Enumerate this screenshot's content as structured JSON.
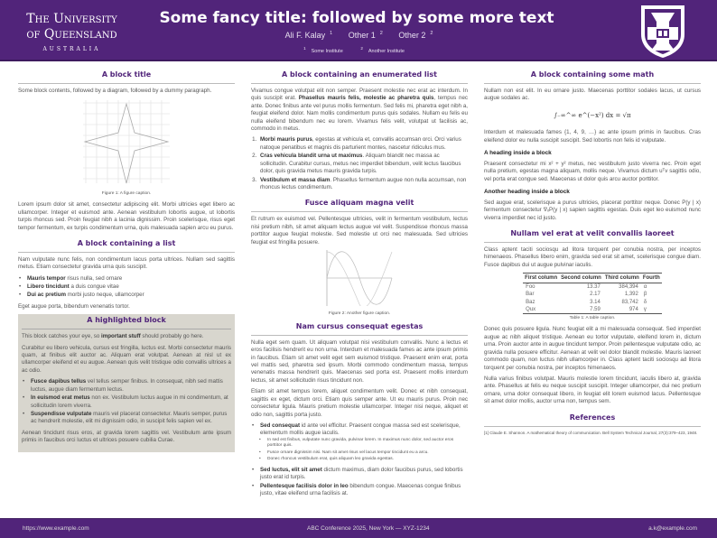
{
  "header": {
    "logo_line1": "The University",
    "logo_line2": "of Queensland",
    "logo_line3": "AUSTRALIA",
    "title": "Some fancy title: followed by some more text",
    "authors": [
      {
        "name": "Ali F. Kalay",
        "sup": "1"
      },
      {
        "name": "Other 1",
        "sup": "2"
      },
      {
        "name": "Other 2",
        "sup": "2"
      }
    ],
    "institutes": [
      {
        "sup": "1",
        "name": "Some Institute"
      },
      {
        "sup": "2",
        "name": "Another Institute"
      }
    ]
  },
  "colors": {
    "brand": "#51247a",
    "highlight_bg": "#d8d6ce"
  },
  "col1": {
    "b1": {
      "title": "A block title",
      "intro": "Some block contents, followed by a diagram, followed by a dummy paragraph.",
      "caption": "Figure 1: A figure caption.",
      "para": "Lorem ipsum dolor sit amet, consectetur adipiscing elit. Morbi ultricies eget libero ac ullamcorper. Integer et euismod ante. Aenean vestibulum lobortis augue, ut lobortis turpis rhoncus sed. Proin feugiat nibh a lacinia dignissim. Proin scelerisque, risus eget tempor fermentum, ex turpis condimentum urna, quis malesuada sapien arcu eu purus."
    },
    "b2": {
      "title": "A block containing a list",
      "intro": "Nam vulputate nunc felis, non condimentum lacus porta ultrices. Nullam sed sagittis metus. Etiam consectetur gravida urna quis suscipit.",
      "items": [
        {
          "b": "Mauris tempor",
          "t": " risus nulla, sed ornare"
        },
        {
          "b": "Libero tincidunt",
          "t": " a duis congue vitae"
        },
        {
          "b": "Dui ac pretium",
          "t": " morbi justo neque, ullamcorper"
        }
      ],
      "outro": "Eget augue porta, bibendum venenatis tortor."
    },
    "b3": {
      "title": "A highlighted block",
      "p1a": "This block catches your eye, so ",
      "p1b": "important stuff",
      "p1c": " should probably go here.",
      "p2": "Curabitur eu libero vehicula, cursus est fringilla, luctus est. Morbi consectetur mauris quam, at finibus elit auctor ac. Aliquam erat volutpat. Aenean at nisl ut ex ullamcorper eleifend et eu augue. Aenean quis velit tristique odio convallis ultrices a ac odio.",
      "items": [
        {
          "b": "Fusce dapibus tellus",
          "t": " vel tellus semper finibus. In consequat, nibh sed mattis luctus, augue diam fermentum lectus."
        },
        {
          "b": "In euismod erat metus",
          "t": " non ex. Vestibulum luctus augue in mi condimentum, at sollicitudin lorem viverra."
        },
        {
          "b": "Suspendisse vulputate",
          "t": " mauris vel placerat consectetur. Mauris semper, purus ac hendrerit molestie, elit mi dignissim odio, in suscipit felis sapien vel ex."
        }
      ],
      "p3": "Aenean tincidunt risus eros, at gravida lorem sagittis vel. Vestibulum ante ipsum primis in faucibus orci luctus et ultrices posuere cubilia Curae."
    }
  },
  "col2": {
    "b1": {
      "title": "A block containing an enumerated list",
      "p1a": "Vivamus congue volutpat elit non semper. Praesent molestie nec erat ac interdum. In quis suscipit erat. ",
      "p1b": "Phasellus mauris felis, molestie ac pharetra quis",
      "p1c": ", tempus nec ante. Donec finibus ante vel purus mollis fermentum. Sed felis mi, pharetra eget nibh a, feugiat eleifend dolor. Nam mollis condimentum purus quis sodales. Nullam eu felis eu nulla eleifend bibendum nec eu lorem. Vivamus felis velit, volutpat ut facilisis ac, commodo in metus.",
      "items": [
        {
          "b": "Morbi mauris purus",
          "t": ", egestas at vehicula et, convallis accumsan orci. Orci varius natoque penatibus et magnis dis parturient montes, nascetur ridiculus mus."
        },
        {
          "b": "Cras vehicula blandit urna ut maximus",
          "t": ". Aliquam blandit nec massa ac sollicitudin. Curabitur cursus, metus nec imperdiet bibendum, velit lectus faucibus dolor, quis gravida metus mauris gravida turpis."
        },
        {
          "b": "Vestibulum et massa diam",
          "t": ". Phasellus fermentum augue non nulla accumsan, non rhoncus lectus condimentum."
        }
      ]
    },
    "b2": {
      "title": "Fusce aliquam magna velit",
      "para": "Et rutrum ex euismod vel. Pellentesque ultricies, velit in fermentum vestibulum, lectus nisi pretium nibh, sit amet aliquam lectus augue vel velit. Suspendisse rhoncus massa porttitor augue feugiat molestie. Sed molestie ut orci nec malesuada. Sed ultricies feugiat est fringilla posuere.",
      "caption": "Figure 2: Another figure caption."
    },
    "b3": {
      "title": "Nam cursus consequat egestas",
      "p1": "Nulla eget sem quam. Ut aliquam volutpat nisi vestibulum convallis. Nunc a lectus et eros facilisis hendrerit eu non urna. Interdum et malesuada fames ac ante ipsum primis in faucibus. Etiam sit amet velit eget sem euismod tristique. Praesent enim erat, porta vel mattis sed, pharetra sed ipsum. Morbi commodo condimentum massa, tempus venenatis massa hendrerit quis. Maecenas sed porta est. Praesent mollis interdum lectus, sit amet sollicitudin risus tincidunt non.",
      "p2": "Etiam sit amet tempus lorem, aliquet condimentum velit. Donec et nibh consequat, sagittis ex eget, dictum orci. Etiam quis semper ante. Ut eu mauris purus. Proin nec consectetur ligula. Mauris pretium molestie ullamcorper. Integer nisi neque, aliquet et odio non, sagittis porta justo.",
      "item1": {
        "b": "Sed consequat",
        "t": " id ante vel efficitur. Praesent congue massa sed est scelerisque, elementum mollis augue iaculis."
      },
      "subitems": [
        "In sed est finibus, vulputate nunc gravida, pulvinar lorem. In maximus nunc dolor, sed auctor eros porttitor quis.",
        "Fusce ornare dignissim nisi. Nam sit amet risus vel lacus tempor tincidunt eu a arcu.",
        "Donec rhoncus vestibulum erat, quis aliquam leo gravida egestas."
      ],
      "item2": {
        "b": "Sed luctus, elit sit amet",
        "t": " dictum maximus, diam dolor faucibus purus, sed lobortis justo erat id turpis."
      },
      "item3": {
        "b": "Pellentesque facilisis dolor in leo",
        "t": " bibendum congue. Maecenas congue finibus justo, vitae eleifend urna facilisis at."
      }
    }
  },
  "col3": {
    "b1": {
      "title": "A block containing some math",
      "p1": "Nullam non est elit. In eu ornare justo. Maecenas porttitor sodales lacus, ut cursus augue sodales ac.",
      "equation": "∫₋∞^∞ e^(−x²) dx = √π",
      "p2": "Interdum et malesuada fames {1, 4, 9, …} ac ante ipsum primis in faucibus. Cras eleifend dolor eu nulla suscipit suscipit. Sed lobortis non felis id vulputate.",
      "h1": "A heading inside a block",
      "p3": "Praesent consectetur mi x² + y² metus, nec vestibulum justo viverra nec. Proin eget nulla pretium, egestas magna aliquam, mollis neque. Vivamus dictum uᵀv sagittis odio, vel porta erat congue sed. Maecenas ut dolor quis arcu auctor porttitor.",
      "h2": "Another heading inside a block",
      "p4": "Sed augue erat, scelerisque a purus ultricies, placerat porttitor neque. Donec P(y | x) fermentum consectetur ∇ₓP(y | x) sapien sagittis egestas. Duis eget leo euismod nunc viverra imperdiet nec id justo."
    },
    "b2": {
      "title": "Nullam vel erat at velit convallis laoreet",
      "p1": "Class aptent taciti sociosqu ad litora torquent per conubia nostra, per inceptos himenaeos. Phasellus libero enim, gravida sed erat sit amet, scelerisque congue diam. Fusce dapibus dui ut augue pulvinar iaculis.",
      "table": {
        "headers": [
          "First column",
          "Second column",
          "Third column",
          "Fourth"
        ],
        "rows": [
          [
            "Foo",
            "13.37",
            "384,394",
            "α"
          ],
          [
            "Bar",
            "2.17",
            "1,392",
            "β"
          ],
          [
            "Baz",
            "3.14",
            "83,742",
            "δ"
          ],
          [
            "Qux",
            "7.59",
            "974",
            "γ"
          ]
        ]
      },
      "caption": "Table 1: A table caption.",
      "p2": "Donec quis posuere ligula. Nunc feugiat elit a mi malesuada consequat. Sed imperdiet augue ac nibh aliquet tristique. Aenean eu tortor vulputate, eleifend lorem in, dictum urna. Proin auctor ante in augue tincidunt tempor. Proin pellentesque vulputate odio, ac gravida nulla posuere efficitur. Aenean at velit vel dolor blandit molestie. Mauris laoreet commodo quam, non luctus nibh ullamcorper in. Class aptent taciti sociosqu ad litora torquent per conubia nostra, per inceptos himenaeos.",
      "p3": "Nulla varius finibus volutpat. Mauris molestie lorem tincidunt, iaculis libero at, gravida ante. Phasellus at felis eu neque suscipit suscipit. Integer ullamcorper, dui nec pretium ornare, urna dolor consequat libero, in feugiat elit lorem euismod lacus. Pellentesque sit amet dolor mollis, auctor urna non, tempus sem."
    },
    "b3": {
      "title": "References",
      "refs": [
        "[1]  Claude E. Shannon. A mathematical theory of communication. Bell System Technical Journal, 27(3):379–423, 1948."
      ]
    }
  },
  "footer": {
    "url": "https://www.example.com",
    "conference": "ABC Conference 2025, New York — XYZ-1234",
    "email": "a.k@example.com"
  }
}
